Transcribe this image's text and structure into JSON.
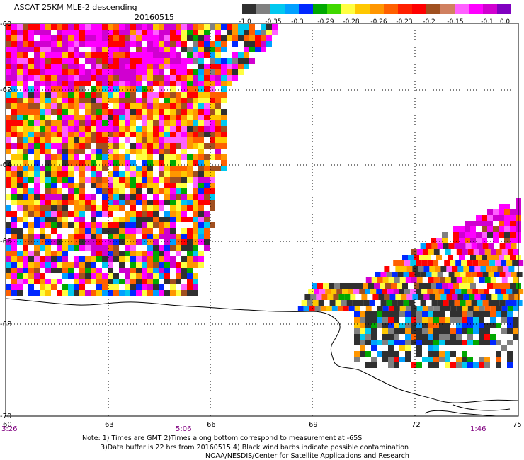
{
  "header": {
    "title": "ASCAT 25KM MLE-2 descending",
    "date": "20160515"
  },
  "colorbar": {
    "labels": [
      "-1.0",
      "-0.35",
      "-0.3",
      "-0.29",
      "-0.28",
      "-0.26",
      "-0.23",
      "-0.2",
      "-0.15",
      "-0.1",
      "0.0"
    ],
    "colors": [
      "#303030",
      "#808080",
      "#00c8f0",
      "#00a0ff",
      "#0028ff",
      "#00a800",
      "#40d800",
      "#ffff40",
      "#ffc800",
      "#ff9600",
      "#ff6000",
      "#ff2000",
      "#ff0000",
      "#a05020",
      "#d08060",
      "#ff60ff",
      "#ff00ff",
      "#d000d0",
      "#8000c0"
    ]
  },
  "axes": {
    "lat_labels": [
      "-60",
      "-62",
      "-64",
      "-66",
      "-68",
      "-70"
    ],
    "lon_labels": [
      "60",
      "63",
      "66",
      "69",
      "72",
      "75"
    ],
    "time_labels": [
      "3:26",
      "5:06",
      "1:46"
    ]
  },
  "notes": {
    "line1": "Note: 1) Times are GMT 2)Times along bottom correspond to measurement at -65S",
    "line2": "3)Data buffer is 22 hrs from 20160515 4) Black wind barbs indicate possible contamination",
    "line3": "NOAA/NESDIS/Center for Satellite Applications and Research"
  },
  "palette": [
    "#ff00ff",
    "#d000d0",
    "#ff60ff",
    "#ff0000",
    "#ff6000",
    "#ff9600",
    "#ffc800",
    "#ffff40",
    "#ffffff",
    "#303030",
    "#0028ff",
    "#00a0ff",
    "#00c8f0",
    "#00a800",
    "#a05020",
    "#808080"
  ],
  "colors": {
    "time": "#800080",
    "coast": "#000000",
    "grid": "#000000"
  }
}
